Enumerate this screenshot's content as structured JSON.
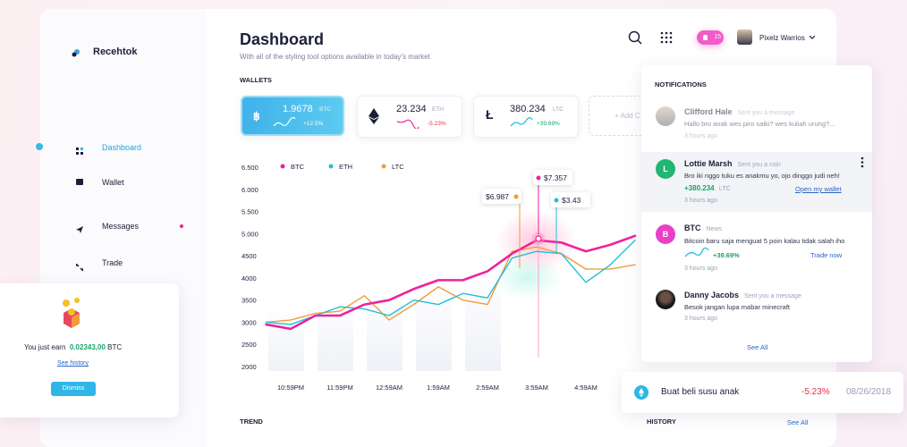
{
  "sidebar": {
    "brand": "Recehtok",
    "nav": [
      "Dashboard",
      "Wallet",
      "Messages",
      "Trade"
    ]
  },
  "earn_card": {
    "text": "You just earn",
    "amount": "0.02343,00",
    "unit": "BTC",
    "link": "See history",
    "button": "Dismiss"
  },
  "header": {
    "title": "Dashboard",
    "subtitle": "With all of the styling tool options available in today's market",
    "badge": "15",
    "user": "Pixelz Warrios"
  },
  "wallets": {
    "title": "WALLETS",
    "cards": [
      {
        "amount": "1.9678",
        "unit": "BTC",
        "change": "+12.5%"
      },
      {
        "amount": "23.234",
        "unit": "ETH",
        "change": "-5.23%"
      },
      {
        "amount": "380.234",
        "unit": "LTC",
        "change": "+39.69%"
      }
    ],
    "add": "+ Add C"
  },
  "chart_data": {
    "type": "line",
    "categories": [
      null,
      "10:59PM",
      null,
      "11:59PM",
      null,
      "12:59AM",
      null,
      "1:59AM",
      null,
      "2:59AM",
      null,
      "3:59AM",
      null,
      "4:59AM",
      null,
      null
    ],
    "series": [
      {
        "name": "BTC",
        "color": "#f0219c",
        "values": [
          2950,
          2850,
          3150,
          3150,
          3400,
          3500,
          3750,
          3950,
          3950,
          4150,
          4550,
          4850,
          4800,
          4600,
          4750,
          4950
        ]
      },
      {
        "name": "ETH",
        "color": "#1fc0d8",
        "values": [
          3000,
          2950,
          3150,
          3350,
          3300,
          3150,
          3500,
          3400,
          3650,
          3550,
          4450,
          4600,
          4550,
          3900,
          4300,
          4850
        ]
      },
      {
        "name": "LTC",
        "color": "#f29b3c",
        "values": [
          3000,
          3050,
          3200,
          3250,
          3600,
          3050,
          3400,
          3800,
          3500,
          3400,
          4600,
          4700,
          4550,
          4200,
          4200,
          4300
        ]
      }
    ],
    "ylim": [
      2000,
      6500
    ],
    "yticks": [
      {
        "value": 6500,
        "label": "6.500"
      },
      {
        "value": 6000,
        "label": "6.000"
      },
      {
        "value": 5500,
        "label": "5.500"
      },
      {
        "value": 5000,
        "label": "5.000"
      },
      4500,
      4000,
      3500,
      3000,
      2500,
      2000
    ],
    "annotations": [
      {
        "label": "$6.987",
        "color": "#f29b3c"
      },
      {
        "label": "$7.357",
        "color": "#f0219c"
      },
      {
        "label": "$3.43",
        "color": "#1fc0d8"
      }
    ],
    "grid": false
  },
  "sections": {
    "trend": "TREND",
    "history": "HISTORY",
    "see_all": "See All"
  },
  "notifications": {
    "title": "NOTIFICATIONS",
    "items": [
      {
        "name": "Clifford Hale",
        "action": "Sent you a message",
        "message": "Hallo bro anak wes piro saiki? wes kuliah urung?...",
        "time": "3 hours ago"
      },
      {
        "initial": "L",
        "name": "Lottie Marsh",
        "action": "Sent you a coin",
        "message": "Bro iki nggo tuku es anakmu yo, ojo dinggo judi neh!",
        "amount": "+380.234",
        "unit": "LTC",
        "link": "Open my wallet",
        "time": "3 hours ago"
      },
      {
        "initial": "B",
        "name": "BTC",
        "action": "News",
        "message": "Bitcoin baru saja menguat 5 poin kalau tidak salah iho",
        "change": "+39.69%",
        "link": "Trade now",
        "time": "3 hours ago"
      },
      {
        "name": "Danny Jacobs",
        "action": "Sent you a message",
        "message": "Besok jangan lupa mabar minecraft",
        "time": "3 hours ago"
      }
    ],
    "see_all": "See All"
  },
  "history_item": {
    "text": "Buat beli susu anak",
    "change": "-5.23%",
    "date": "08/26/2018"
  }
}
